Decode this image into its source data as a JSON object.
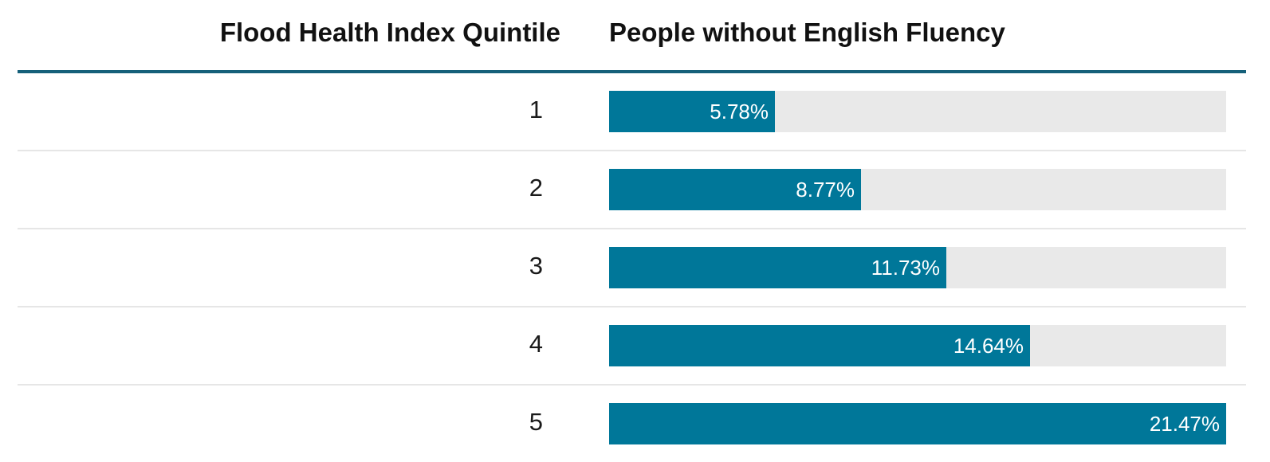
{
  "table": {
    "col_quintile": "Flood Health Index Quintile",
    "col_metric": "People without English Fluency"
  },
  "colors": {
    "bar": "#007799",
    "track": "#e9e9e9",
    "header_rule": "#15607a"
  },
  "chart_data": {
    "type": "bar",
    "orientation": "horizontal",
    "categories": [
      "1",
      "2",
      "3",
      "4",
      "5"
    ],
    "values": [
      5.78,
      8.77,
      11.73,
      14.64,
      21.47
    ],
    "value_labels": [
      "5.78%",
      "8.77%",
      "11.73%",
      "14.64%",
      "21.47%"
    ],
    "xlim": [
      0,
      21.47
    ],
    "grid": false
  }
}
